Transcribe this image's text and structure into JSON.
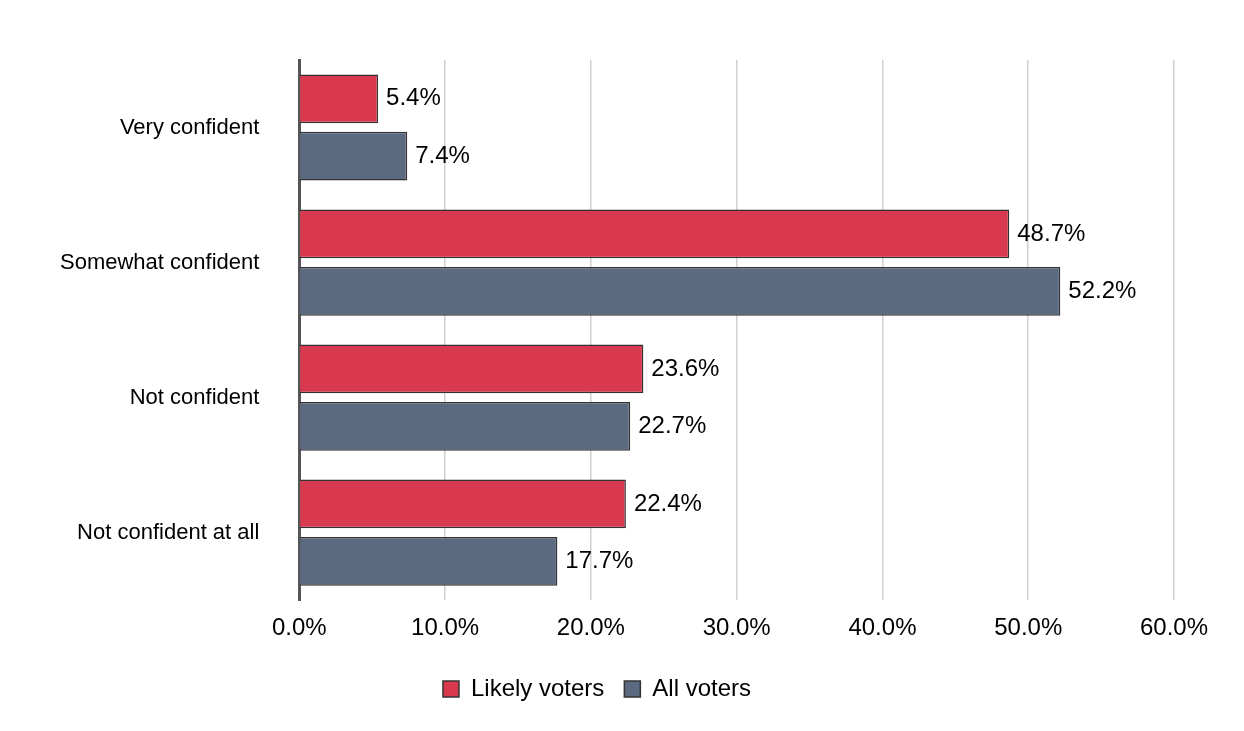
{
  "chart_data": {
    "type": "bar",
    "orientation": "horizontal",
    "categories": [
      "Very confident",
      "Somewhat confident",
      "Not confident",
      "Not confident at all"
    ],
    "series": [
      {
        "name": "Likely voters",
        "color": "#d9394f",
        "values": [
          5.4,
          48.7,
          23.6,
          22.4
        ],
        "value_labels": [
          "5.4%",
          "48.7%",
          "23.6%",
          "22.4%"
        ]
      },
      {
        "name": "All voters",
        "color": "#5b6a80",
        "values": [
          7.4,
          52.2,
          22.7,
          17.7
        ],
        "value_labels": [
          "7.4%",
          "52.2%",
          "22.7%",
          "17.7%"
        ]
      }
    ],
    "xlim": [
      0,
      60
    ],
    "xticks": [
      {
        "value": 0,
        "label": "0.0%"
      },
      {
        "value": 10,
        "label": "10.0%"
      },
      {
        "value": 20,
        "label": "20.0%"
      },
      {
        "value": 30,
        "label": "30.0%"
      },
      {
        "value": 40,
        "label": "40.0%"
      },
      {
        "value": 50,
        "label": "50.0%"
      },
      {
        "value": 60,
        "label": "60.0%"
      }
    ],
    "grid": "x",
    "legend": "bottom"
  }
}
